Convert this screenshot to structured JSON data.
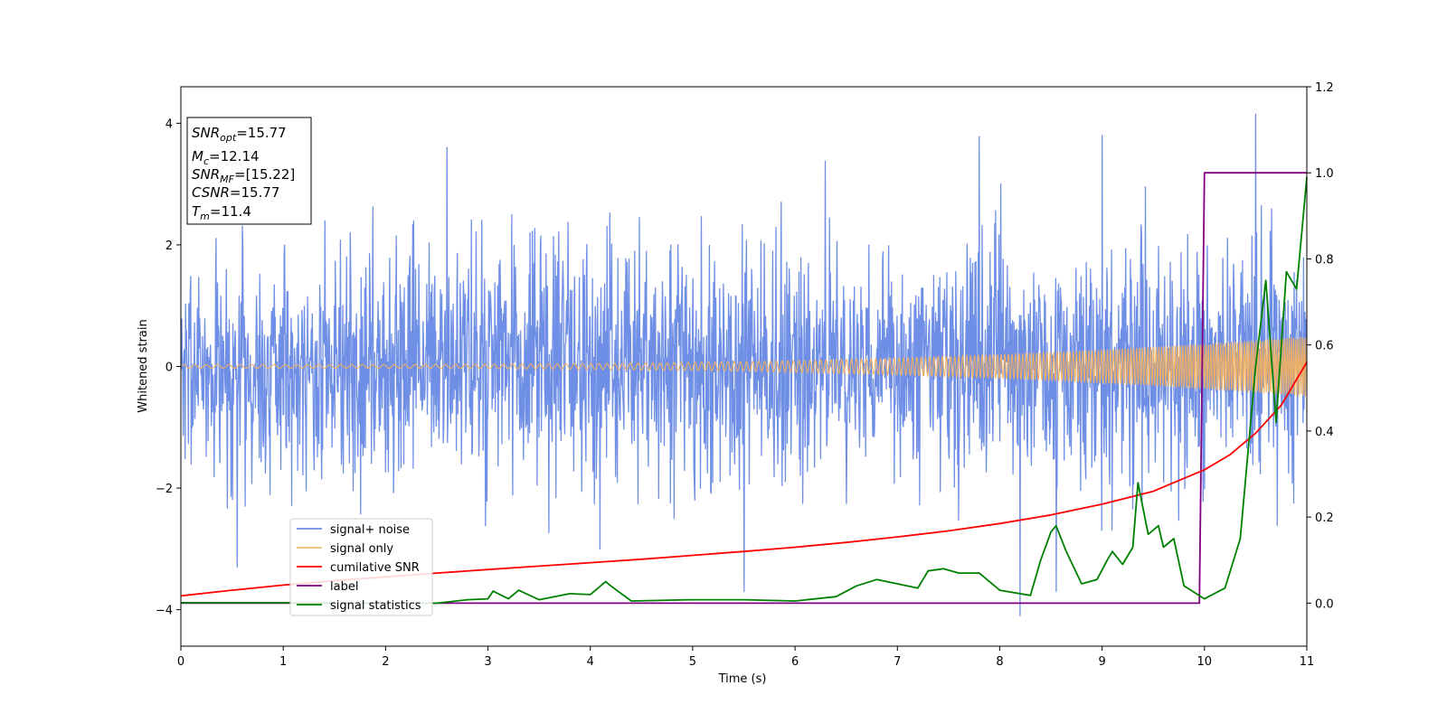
{
  "chart_data": {
    "type": "line",
    "xlabel": "Time (s)",
    "ylabel": "Whitened strain",
    "xlim": [
      0,
      11
    ],
    "ylim_left": [
      -4.6,
      4.6
    ],
    "ylim_right": [
      -0.1,
      1.2
    ],
    "x_ticks": [
      "0",
      "1",
      "2",
      "3",
      "4",
      "5",
      "6",
      "7",
      "8",
      "9",
      "10",
      "11"
    ],
    "y_ticks_left": [
      "4",
      "2",
      "0",
      "−2",
      "−4"
    ],
    "y_ticks_left_values": [
      4,
      2,
      0,
      -2,
      -4
    ],
    "y_ticks_right": [
      "0.0",
      "0.2",
      "0.4",
      "0.6",
      "0.8",
      "1.0",
      "1.2"
    ],
    "y_ticks_right_values": [
      0.0,
      0.2,
      0.4,
      0.6,
      0.8,
      1.0,
      1.2
    ],
    "grid": false,
    "legend_position": "lower-left",
    "annotation": {
      "snr_opt": {
        "base": "SNR",
        "sub": "opt",
        "value": "=15.77"
      },
      "mc": {
        "base": "M",
        "sub": "c",
        "value": "=12.14"
      },
      "snr_mf": {
        "base": "SNR",
        "sub": "MF",
        "value": "=[15.22]"
      },
      "csnr": {
        "base": "CSNR",
        "sub": "",
        "value": "=15.77"
      },
      "tm": {
        "base": "T",
        "sub": "m",
        "value": "=11.4"
      }
    },
    "series": [
      {
        "name": "signal+ noise",
        "axis": "left",
        "color": "#6f8fe6",
        "style": "noise",
        "std": 0.95,
        "x_range": [
          0,
          11
        ],
        "peaks": [
          [
            10.5,
            4.15
          ],
          [
            7.8,
            3.78
          ],
          [
            9.0,
            3.8
          ],
          [
            2.6,
            3.6
          ],
          [
            8.2,
            -4.1
          ],
          [
            5.5,
            -3.7
          ],
          [
            0.55,
            -3.3
          ],
          [
            8.55,
            -3.7
          ]
        ]
      },
      {
        "name": "signal only",
        "axis": "left",
        "color": "#f4b05c",
        "style": "chirp",
        "amp_start": 0.03,
        "amp_end": 0.5,
        "x_range": [
          0,
          11
        ]
      },
      {
        "name": "cumilative SNR",
        "axis": "right",
        "color": "#ff0000",
        "x": [
          0,
          0.5,
          1,
          1.5,
          2,
          2.5,
          3,
          3.5,
          4,
          4.5,
          5,
          5.5,
          6,
          6.5,
          7,
          7.5,
          8,
          8.5,
          9,
          9.5,
          10,
          10.25,
          10.5,
          10.75,
          11
        ],
        "y": [
          0.017,
          0.03,
          0.042,
          0.052,
          0.061,
          0.07,
          0.078,
          0.086,
          0.094,
          0.102,
          0.111,
          0.12,
          0.13,
          0.141,
          0.154,
          0.168,
          0.185,
          0.205,
          0.23,
          0.26,
          0.31,
          0.345,
          0.395,
          0.46,
          0.56
        ]
      },
      {
        "name": "label",
        "axis": "right",
        "color": "#800080",
        "x": [
          0,
          9.95,
          10.0,
          11
        ],
        "y": [
          0,
          0,
          1,
          1
        ]
      },
      {
        "name": "signal statistics",
        "axis": "right",
        "color": "#008000",
        "x": [
          0,
          1,
          2,
          2.5,
          2.8,
          3.0,
          3.05,
          3.2,
          3.3,
          3.5,
          3.8,
          4.0,
          4.15,
          4.2,
          4.4,
          5.0,
          5.5,
          6.0,
          6.4,
          6.6,
          6.8,
          7.0,
          7.2,
          7.3,
          7.45,
          7.6,
          7.8,
          8.0,
          8.3,
          8.4,
          8.5,
          8.55,
          8.65,
          8.8,
          8.95,
          9.05,
          9.1,
          9.2,
          9.3,
          9.35,
          9.45,
          9.55,
          9.6,
          9.7,
          9.8,
          10.0,
          10.2,
          10.35,
          10.5,
          10.6,
          10.7,
          10.8,
          10.9,
          11.0
        ],
        "y": [
          0.001,
          0.001,
          0.0,
          0.0,
          0.008,
          0.01,
          0.028,
          0.01,
          0.03,
          0.008,
          0.022,
          0.02,
          0.05,
          0.04,
          0.005,
          0.008,
          0.008,
          0.005,
          0.015,
          0.04,
          0.055,
          0.045,
          0.035,
          0.075,
          0.08,
          0.07,
          0.07,
          0.03,
          0.018,
          0.1,
          0.165,
          0.18,
          0.12,
          0.045,
          0.055,
          0.1,
          0.12,
          0.09,
          0.13,
          0.28,
          0.16,
          0.18,
          0.13,
          0.15,
          0.04,
          0.01,
          0.035,
          0.15,
          0.55,
          0.75,
          0.42,
          0.77,
          0.73,
          0.99
        ]
      }
    ]
  }
}
